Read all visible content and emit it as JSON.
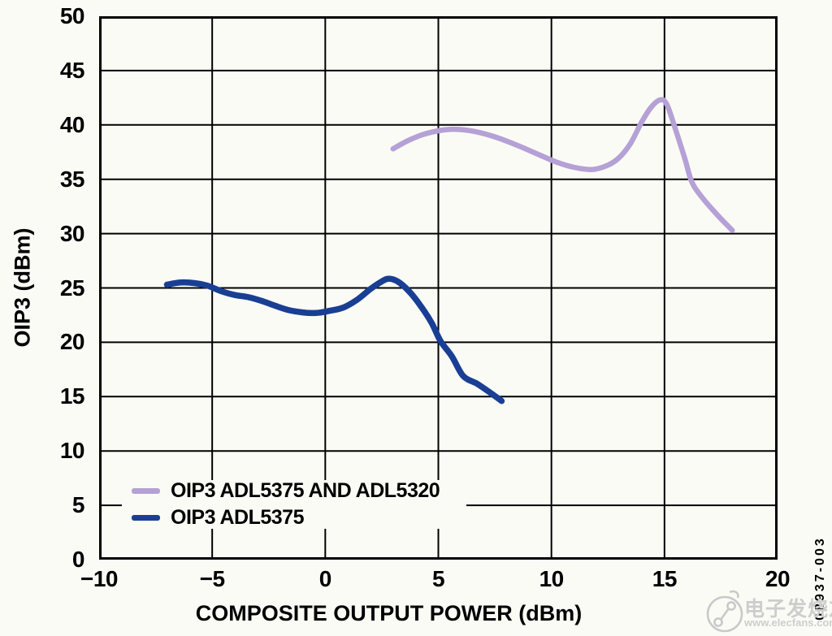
{
  "figure": {
    "code": "08937-003",
    "watermark": {
      "cn_text": "电子发烧友",
      "url_text": "www.elecfans.com",
      "color": "#cdcdcd"
    }
  },
  "colors": {
    "background": "#fbfbf6",
    "grid": "#000000",
    "frame": "#000000",
    "text": "#000000"
  },
  "chart_data": {
    "type": "line",
    "title": "",
    "xlabel": "COMPOSITE OUTPUT POWER (dBm)",
    "ylabel": "OIP3 (dBm)",
    "xlim": [
      -10,
      20
    ],
    "ylim": [
      0,
      50
    ],
    "xticks": [
      -10,
      -5,
      0,
      5,
      10,
      15,
      20
    ],
    "yticks": [
      0,
      5,
      10,
      15,
      20,
      25,
      30,
      35,
      40,
      45,
      50
    ],
    "grid": true,
    "legend_position": "lower-left",
    "series": [
      {
        "name": "OIP3 ADL5375 AND ADL5320",
        "color": "#b5a1d6",
        "line_width": 6.5,
        "x": [
          3,
          3.6,
          4.3,
          5.1,
          5.8,
          6.6,
          7.5,
          8.4,
          9.3,
          10.2,
          11,
          11.8,
          12.5,
          13,
          13.5,
          14,
          14.4,
          14.8,
          15.1,
          15.5,
          15.9,
          16.2,
          16.6,
          17.3,
          18
        ],
        "y": [
          37.8,
          38.5,
          39.1,
          39.5,
          39.6,
          39.4,
          38.9,
          38.2,
          37.4,
          36.6,
          36.1,
          35.9,
          36.3,
          37.0,
          38.3,
          40.3,
          41.6,
          42.3,
          41.9,
          39.5,
          36.9,
          34.8,
          33.5,
          31.8,
          30.3
        ]
      },
      {
        "name": "OIP3 ADL5375",
        "color": "#193f94",
        "line_width": 7.5,
        "x": [
          -7,
          -6.4,
          -5.8,
          -5.2,
          -4.6,
          -4,
          -3.4,
          -2.8,
          -2.2,
          -1.6,
          -1,
          -0.4,
          0.2,
          0.8,
          1.4,
          2,
          2.5,
          2.8,
          3.2,
          3.7,
          4.2,
          4.7,
          5.1,
          5.6,
          6.1,
          6.7,
          7.2,
          7.8
        ],
        "y": [
          25.3,
          25.5,
          25.45,
          25.2,
          24.7,
          24.35,
          24.15,
          23.8,
          23.35,
          22.95,
          22.75,
          22.7,
          22.9,
          23.2,
          23.9,
          24.9,
          25.6,
          25.85,
          25.6,
          24.7,
          23.4,
          21.8,
          20.1,
          18.7,
          16.9,
          16.2,
          15.5,
          14.6
        ]
      }
    ]
  }
}
